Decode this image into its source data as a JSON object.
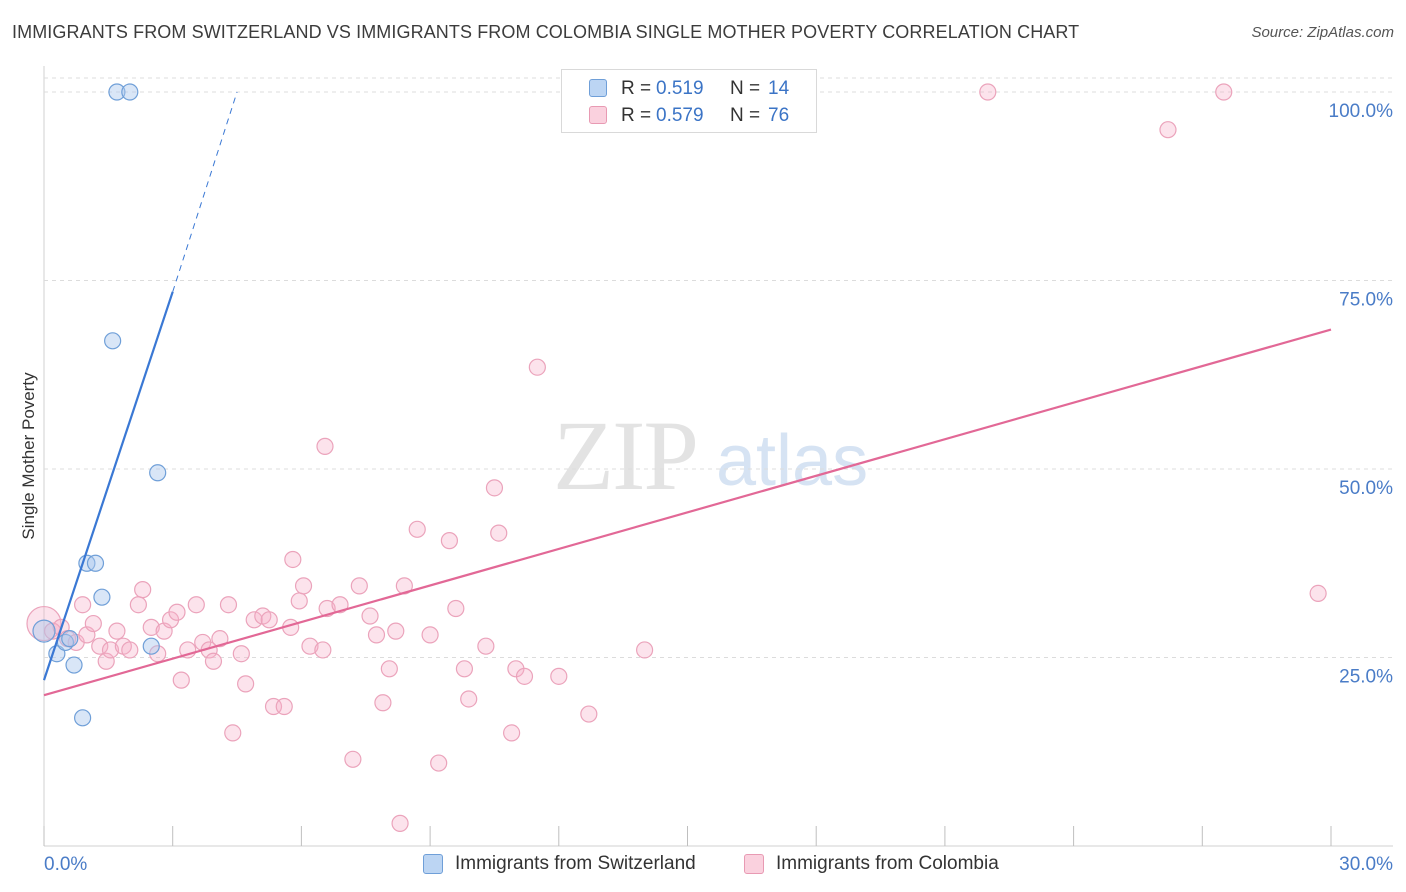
{
  "header": {
    "title": "IMMIGRANTS FROM SWITZERLAND VS IMMIGRANTS FROM COLOMBIA SINGLE MOTHER POVERTY CORRELATION CHART",
    "source": "Source: ZipAtlas.com"
  },
  "watermark": {
    "zip": "ZIP",
    "atlas": "atlas"
  },
  "legend": {
    "r_label": "R =",
    "n_label": "N =",
    "rows": [
      {
        "r": "0.519",
        "n": "14",
        "color": "#a9c7ee",
        "border": "#6f9fd8"
      },
      {
        "r": "0.579",
        "n": "76",
        "color": "#f7c0d0",
        "border": "#e89ab3"
      }
    ]
  },
  "bottom_legend": {
    "switzerland": "Immigrants from Switzerland",
    "colombia": "Immigrants from Colombia"
  },
  "chart_data": {
    "type": "scatter",
    "title": "IMMIGRANTS FROM SWITZERLAND VS IMMIGRANTS FROM COLOMBIA SINGLE MOTHER POVERTY CORRELATION CHART",
    "xlabel": "",
    "ylabel": "Single Mother Poverty",
    "xlim": [
      0,
      30
    ],
    "ylim": [
      0,
      100
    ],
    "x_tick_labels": [
      "0.0%",
      "30.0%"
    ],
    "y_ticks": [
      25,
      50,
      75,
      100
    ],
    "y_tick_labels": [
      "25.0%",
      "50.0%",
      "75.0%",
      "100.0%"
    ],
    "grid": "horizontal dashed",
    "legend_position": "top-center",
    "colors": {
      "switzerland": "#3a78d4",
      "colombia": "#e26896"
    },
    "series": [
      {
        "name": "Immigrants from Switzerland",
        "r": 0.519,
        "n": 14,
        "trend": {
          "x0": 0.0,
          "y0": 22.0,
          "x1": 3.0,
          "y1": 73.5,
          "dashed_to": {
            "x": 4.5,
            "y": 100
          }
        },
        "points": [
          [
            0.0,
            28.5
          ],
          [
            0.3,
            25.5
          ],
          [
            0.5,
            27.0
          ],
          [
            0.6,
            27.5
          ],
          [
            0.7,
            24.0
          ],
          [
            0.9,
            17.0
          ],
          [
            1.0,
            37.5
          ],
          [
            1.2,
            37.5
          ],
          [
            1.35,
            33.0
          ],
          [
            1.6,
            67.0
          ],
          [
            1.7,
            100.0
          ],
          [
            2.0,
            100.0
          ],
          [
            2.5,
            26.5
          ],
          [
            2.65,
            49.5
          ]
        ]
      },
      {
        "name": "Immigrants from Colombia",
        "r": 0.579,
        "n": 76,
        "trend": {
          "x0": 0.0,
          "y0": 20.0,
          "x1": 30.0,
          "y1": 68.5
        },
        "points": [
          [
            0.0,
            29.5
          ],
          [
            0.2,
            28.5
          ],
          [
            0.4,
            29.0
          ],
          [
            0.55,
            27.5
          ],
          [
            0.75,
            27.0
          ],
          [
            0.9,
            32.0
          ],
          [
            1.0,
            28.0
          ],
          [
            1.15,
            29.5
          ],
          [
            1.3,
            26.5
          ],
          [
            1.45,
            24.5
          ],
          [
            1.55,
            26.0
          ],
          [
            1.7,
            28.5
          ],
          [
            1.85,
            26.5
          ],
          [
            2.0,
            26.0
          ],
          [
            2.2,
            32.0
          ],
          [
            2.3,
            34.0
          ],
          [
            2.5,
            29.0
          ],
          [
            2.65,
            25.5
          ],
          [
            2.8,
            28.5
          ],
          [
            2.95,
            30.0
          ],
          [
            3.1,
            31.0
          ],
          [
            3.2,
            22.0
          ],
          [
            3.35,
            26.0
          ],
          [
            3.55,
            32.0
          ],
          [
            3.7,
            27.0
          ],
          [
            3.85,
            26.0
          ],
          [
            3.95,
            24.5
          ],
          [
            4.1,
            27.5
          ],
          [
            4.3,
            32.0
          ],
          [
            4.4,
            15.0
          ],
          [
            4.6,
            25.5
          ],
          [
            4.7,
            21.5
          ],
          [
            4.9,
            30.0
          ],
          [
            5.1,
            30.5
          ],
          [
            5.25,
            30.0
          ],
          [
            5.35,
            18.5
          ],
          [
            5.6,
            18.5
          ],
          [
            5.75,
            29.0
          ],
          [
            5.8,
            38.0
          ],
          [
            5.95,
            32.5
          ],
          [
            6.05,
            34.5
          ],
          [
            6.2,
            26.5
          ],
          [
            6.5,
            26.0
          ],
          [
            6.55,
            53.0
          ],
          [
            6.6,
            31.5
          ],
          [
            6.9,
            32.0
          ],
          [
            7.2,
            11.5
          ],
          [
            7.35,
            34.5
          ],
          [
            7.6,
            30.5
          ],
          [
            7.75,
            28.0
          ],
          [
            7.9,
            19.0
          ],
          [
            8.05,
            23.5
          ],
          [
            8.2,
            28.5
          ],
          [
            8.3,
            3.0
          ],
          [
            8.4,
            34.5
          ],
          [
            8.7,
            42.0
          ],
          [
            9.0,
            28.0
          ],
          [
            9.2,
            11.0
          ],
          [
            9.45,
            40.5
          ],
          [
            9.6,
            31.5
          ],
          [
            9.8,
            23.5
          ],
          [
            9.9,
            19.5
          ],
          [
            10.3,
            26.5
          ],
          [
            10.5,
            47.5
          ],
          [
            10.6,
            41.5
          ],
          [
            10.9,
            15.0
          ],
          [
            11.0,
            23.5
          ],
          [
            11.2,
            22.5
          ],
          [
            11.5,
            63.5
          ],
          [
            12.0,
            22.5
          ],
          [
            12.7,
            17.5
          ],
          [
            14.0,
            26.0
          ],
          [
            22.0,
            100.0
          ],
          [
            26.2,
            95.0
          ],
          [
            27.5,
            100.0
          ],
          [
            29.7,
            33.5
          ]
        ]
      }
    ]
  }
}
